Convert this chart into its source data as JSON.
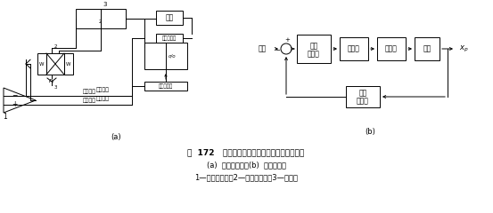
{
  "fig_width": 5.53,
  "fig_height": 2.4,
  "dpi": 100,
  "bg_color": "#ffffff",
  "caption_line1": "图  172   电液伺服阀控制的液压缸直线位置回路",
  "caption_line2": "(a)  回路原理图；(b)  职能方框图",
  "caption_line3": "1—伺服放大器；2—电液伺服阀；3—液压缸",
  "label_a": "(a)",
  "label_b": "(b)"
}
